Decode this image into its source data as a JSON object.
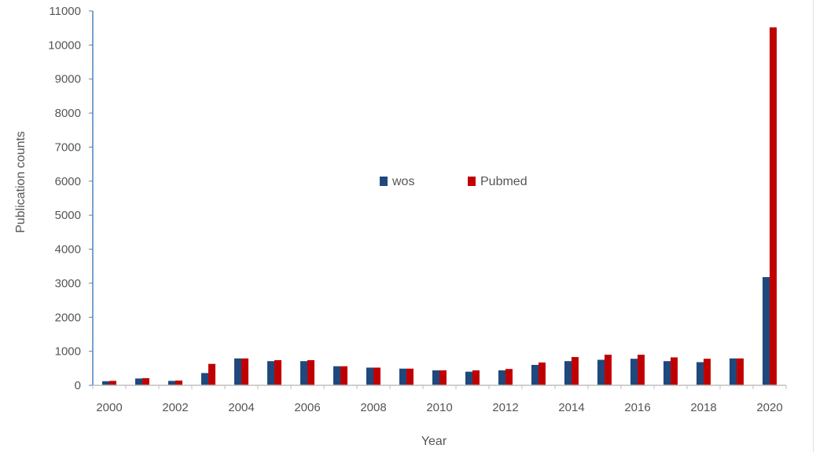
{
  "chart_data": {
    "type": "bar",
    "categories": [
      "2000",
      "2001",
      "2002",
      "2003",
      "2004",
      "2005",
      "2006",
      "2007",
      "2008",
      "2009",
      "2010",
      "2011",
      "2012",
      "2013",
      "2014",
      "2015",
      "2016",
      "2017",
      "2018",
      "2019",
      "2020"
    ],
    "x_tick_labels": [
      "2000",
      "2002",
      "2004",
      "2006",
      "2008",
      "2010",
      "2012",
      "2014",
      "2016",
      "2018",
      "2020"
    ],
    "series": [
      {
        "name": "wos",
        "color": "#1F497D",
        "values": [
          120,
          200,
          130,
          360,
          790,
          710,
          710,
          560,
          520,
          490,
          440,
          400,
          440,
          600,
          710,
          750,
          780,
          710,
          680,
          790,
          3180
        ]
      },
      {
        "name": "Pubmed",
        "color": "#C00000",
        "values": [
          130,
          210,
          140,
          630,
          790,
          740,
          740,
          560,
          520,
          490,
          440,
          440,
          480,
          670,
          830,
          900,
          900,
          820,
          780,
          790,
          10520
        ]
      }
    ],
    "xlabel": "Year",
    "ylabel": "Publication counts",
    "ylim": [
      0,
      11000
    ],
    "yticks": [
      0,
      1000,
      2000,
      3000,
      4000,
      5000,
      6000,
      7000,
      8000,
      9000,
      10000,
      11000
    ],
    "grid": false,
    "legend_position": "center"
  }
}
